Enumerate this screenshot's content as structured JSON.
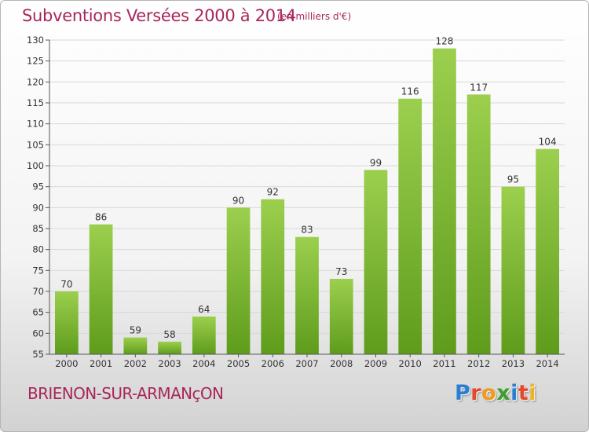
{
  "chart_data": {
    "type": "bar",
    "title": "Subventions Versées 2000 à 2014",
    "subtitle": "(en milliers d'€)",
    "categories": [
      "2000",
      "2001",
      "2002",
      "2003",
      "2004",
      "2005",
      "2006",
      "2007",
      "2008",
      "2009",
      "2010",
      "2011",
      "2012",
      "2013",
      "2014"
    ],
    "values": [
      70,
      86,
      59,
      58,
      64,
      90,
      92,
      83,
      73,
      99,
      116,
      128,
      117,
      95,
      104
    ],
    "ylim": [
      55,
      130
    ],
    "yticks": [
      55,
      60,
      65,
      70,
      75,
      80,
      85,
      90,
      95,
      100,
      105,
      110,
      115,
      120,
      125,
      130
    ],
    "grid": true,
    "bar_color_top": "#9ccf4e",
    "bar_color_bottom": "#5f9c1c"
  },
  "footer": {
    "commune": "BRIENON-SUR-ARMANçON"
  },
  "logo": {
    "letters": [
      {
        "char": "P",
        "color": "#2b7fd0"
      },
      {
        "char": "r",
        "color": "#e5482a"
      },
      {
        "char": "o",
        "color": "#f29a1b"
      },
      {
        "char": "x",
        "color": "#3aa02b"
      },
      {
        "char": "i",
        "color": "#2b7fd0"
      },
      {
        "char": "t",
        "color": "#e5482a"
      },
      {
        "char": "i",
        "color": "#f0b31b"
      }
    ]
  },
  "colors": {
    "title": "#a8265b",
    "grid": "#d8d8d8",
    "axis": "#555555"
  }
}
